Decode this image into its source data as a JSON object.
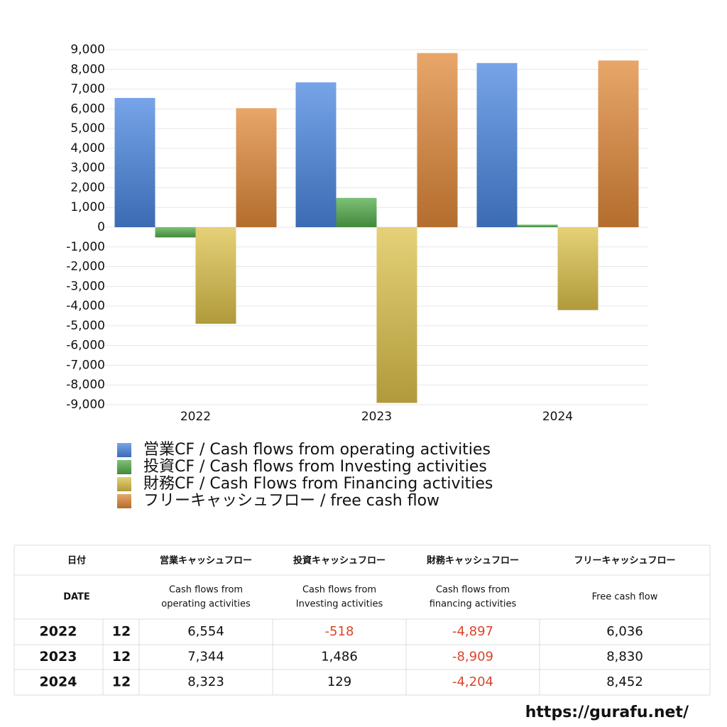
{
  "chart_data": {
    "type": "bar",
    "categories": [
      "2022",
      "2023",
      "2024"
    ],
    "series": [
      {
        "name": "営業CF / Cash flows from operating activities",
        "color": "#4a86e0",
        "values": [
          6554,
          7344,
          8323
        ]
      },
      {
        "name": "投資CF / Cash flows from Investing activities",
        "color": "#52ab4a",
        "values": [
          -518,
          1486,
          129
        ]
      },
      {
        "name": "財務CF / Cash Flows from Financing activities",
        "color": "#dcc14a",
        "values": [
          -4897,
          -8909,
          -4204
        ]
      },
      {
        "name": "フリーキャッシュフロー / free cash flow",
        "color": "#e08838",
        "values": [
          6036,
          8830,
          8452
        ]
      }
    ],
    "ylim": [
      -9000,
      9000
    ],
    "yticks": [
      {
        "value": -9000,
        "label": "-9,000"
      },
      {
        "value": -8000,
        "label": "-8,000"
      },
      {
        "value": -7000,
        "label": "-7,000"
      },
      {
        "value": -6000,
        "label": "-6,000"
      },
      {
        "value": -5000,
        "label": "-5,000"
      },
      {
        "value": -4000,
        "label": "-4,000"
      },
      {
        "value": -3000,
        "label": "-3,000"
      },
      {
        "value": -2000,
        "label": "-2,000"
      },
      {
        "value": -1000,
        "label": "-1,000"
      },
      0,
      {
        "value": 1000,
        "label": "1,000"
      },
      {
        "value": 2000,
        "label": "2,000"
      },
      {
        "value": 3000,
        "label": "3,000"
      },
      {
        "value": 4000,
        "label": "4,000"
      },
      {
        "value": 5000,
        "label": "5,000"
      },
      {
        "value": 6000,
        "label": "6,000"
      },
      {
        "value": 7000,
        "label": "7,000"
      },
      {
        "value": 8000,
        "label": "8,000"
      },
      {
        "value": 9000,
        "label": "9,000"
      }
    ],
    "grid": true
  },
  "table": {
    "header": [
      "日付",
      "営業キャッシュフロー",
      "投資キャッシュフロー",
      "財務キャッシュフロー",
      "フリーキャッシュフロー"
    ],
    "subheader": [
      [
        "DATE"
      ],
      [
        "Cash flows from",
        "operating activities"
      ],
      [
        "Cash flows from",
        "Investing activities"
      ],
      [
        "Cash flows from",
        "financing activities"
      ],
      [
        "Free cash flow"
      ]
    ],
    "rows": [
      [
        "2022",
        "12",
        "6,554",
        "-518",
        "-4,897",
        "6,036"
      ],
      [
        "2023",
        "12",
        "7,344",
        "1,486",
        "-8,909",
        "8,830"
      ],
      [
        "2024",
        "12",
        "8,323",
        "129",
        "-4,204",
        "8,452"
      ]
    ]
  },
  "footer": {
    "url": "https://gurafu.net/"
  }
}
